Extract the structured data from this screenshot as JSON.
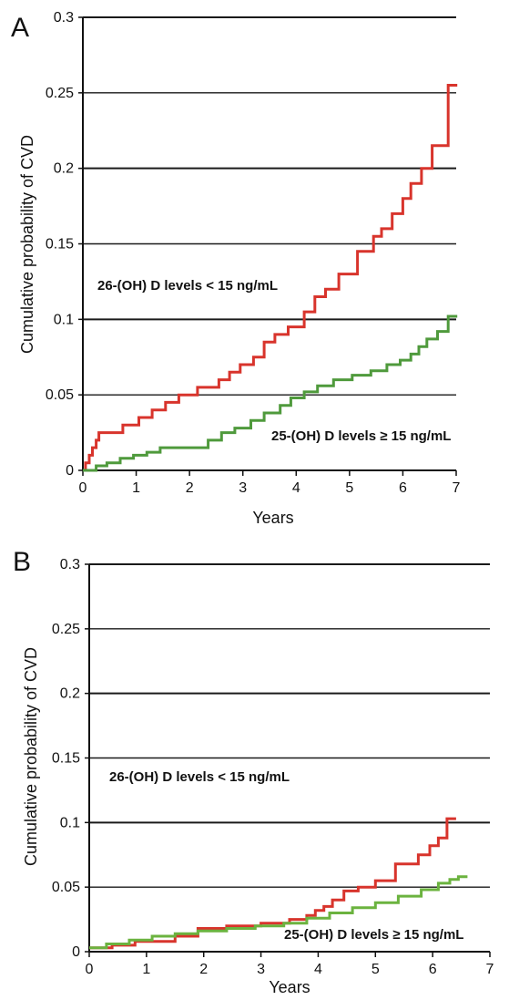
{
  "chart_data": [
    {
      "type": "line",
      "panel_label": "A",
      "xlabel": "Years",
      "ylabel": "Cumulative probability of CVD",
      "xlim": [
        0,
        7
      ],
      "ylim": [
        0,
        0.3
      ],
      "x_ticks": [
        "0",
        "1",
        "2",
        "3",
        "4",
        "5",
        "6",
        "7"
      ],
      "y_ticks": [
        "0",
        "0.05",
        "0.1",
        "0.15",
        "0.2",
        "0.25",
        "0.3"
      ],
      "grid": true,
      "series": [
        {
          "color": "#d8342c",
          "x": [
            0,
            0.05,
            0.12,
            0.18,
            0.25,
            0.3,
            0.75,
            1.05,
            1.3,
            1.55,
            1.8,
            2.15,
            2.55,
            2.75,
            2.95,
            3.2,
            3.4,
            3.6,
            3.85,
            4.15,
            4.35,
            4.55,
            4.8,
            5.15,
            5.45,
            5.6,
            5.8,
            6.0,
            6.15,
            6.35,
            6.55,
            6.85
          ],
          "y": [
            0,
            0.005,
            0.01,
            0.015,
            0.02,
            0.025,
            0.03,
            0.035,
            0.04,
            0.045,
            0.05,
            0.055,
            0.06,
            0.065,
            0.07,
            0.075,
            0.085,
            0.09,
            0.095,
            0.105,
            0.115,
            0.12,
            0.13,
            0.145,
            0.155,
            0.16,
            0.17,
            0.18,
            0.19,
            0.2,
            0.215,
            0.255
          ],
          "label": "26-(OH) D levels < 15 ng/mL"
        },
        {
          "color": "#4f9a3c",
          "x": [
            0,
            0.25,
            0.45,
            0.7,
            0.95,
            1.2,
            1.45,
            2.35,
            2.6,
            2.85,
            3.15,
            3.4,
            3.7,
            3.9,
            4.15,
            4.4,
            4.7,
            5.05,
            5.4,
            5.7,
            5.95,
            6.15,
            6.3,
            6.45,
            6.65,
            6.85
          ],
          "y": [
            0,
            0.003,
            0.005,
            0.008,
            0.01,
            0.012,
            0.015,
            0.02,
            0.025,
            0.028,
            0.033,
            0.038,
            0.043,
            0.048,
            0.052,
            0.056,
            0.06,
            0.063,
            0.066,
            0.07,
            0.073,
            0.077,
            0.082,
            0.087,
            0.092,
            0.102
          ],
          "label": "25-(OH) D levels ≥ 15 ng/mL"
        }
      ]
    },
    {
      "type": "line",
      "panel_label": "B",
      "xlabel": "Years",
      "ylabel": "Cumulative probability of CVD",
      "xlim": [
        0,
        7
      ],
      "ylim": [
        0,
        0.3
      ],
      "x_ticks": [
        "0",
        "1",
        "2",
        "3",
        "4",
        "5",
        "6",
        "7"
      ],
      "y_ticks": [
        "0",
        "0.05",
        "0.1",
        "0.15",
        "0.2",
        "0.25",
        "0.3"
      ],
      "grid": true,
      "series": [
        {
          "color": "#d8342c",
          "x": [
            0,
            0.4,
            0.8,
            1.5,
            1.9,
            2.4,
            3.0,
            3.5,
            3.8,
            3.95,
            4.1,
            4.25,
            4.45,
            4.7,
            5.0,
            5.35,
            5.75,
            5.95,
            6.1,
            6.25
          ],
          "y": [
            0.003,
            0.005,
            0.008,
            0.012,
            0.018,
            0.02,
            0.022,
            0.025,
            0.028,
            0.032,
            0.035,
            0.04,
            0.047,
            0.05,
            0.055,
            0.068,
            0.075,
            0.082,
            0.088,
            0.103
          ],
          "label": "26-(OH) D levels < 15 ng/mL"
        },
        {
          "color": "#6bb33f",
          "x": [
            0,
            0.3,
            0.7,
            1.1,
            1.5,
            1.9,
            2.4,
            2.9,
            3.4,
            3.8,
            4.2,
            4.6,
            5.0,
            5.4,
            5.8,
            6.1,
            6.3,
            6.45
          ],
          "y": [
            0.003,
            0.006,
            0.009,
            0.012,
            0.014,
            0.016,
            0.018,
            0.02,
            0.022,
            0.026,
            0.03,
            0.034,
            0.038,
            0.043,
            0.048,
            0.053,
            0.056,
            0.058
          ],
          "label": "25-(OH) D levels ≥ 15 ng/mL"
        }
      ]
    }
  ]
}
